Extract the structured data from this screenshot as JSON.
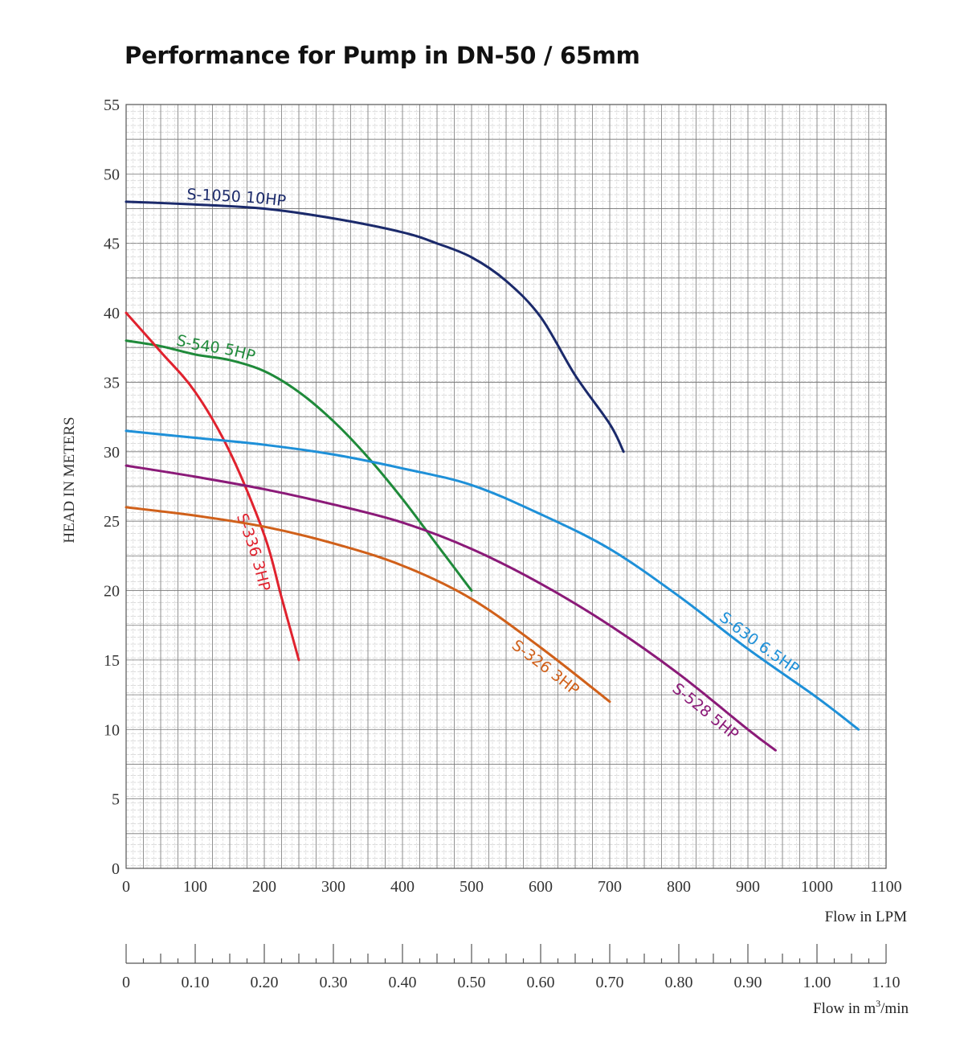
{
  "chart_data": {
    "type": "line",
    "title": "Performance for Pump in DN-50 / 65mm",
    "xlabel": "Flow in LPM",
    "ylabel": "HEAD IN METERS",
    "xlim": [
      0,
      1100
    ],
    "ylim": [
      0,
      55
    ],
    "x_ticks": [
      "0",
      "100",
      "200",
      "300",
      "400",
      "500",
      "600",
      "700",
      "800",
      "900",
      "1000",
      "1100"
    ],
    "y_ticks": [
      "0",
      "5",
      "10",
      "15",
      "20",
      "25",
      "30",
      "35",
      "40",
      "45",
      "50",
      "55"
    ],
    "grid": true,
    "secondary_axis": {
      "label_prefix": "Flow in m",
      "label_superscript": "3",
      "label_suffix": "/min",
      "range": [
        0,
        1.1
      ],
      "ticks": [
        "0",
        "0.10",
        "0.20",
        "0.30",
        "0.40",
        "0.50",
        "0.60",
        "0.70",
        "0.80",
        "0.90",
        "1.00",
        "1.10"
      ]
    },
    "series": [
      {
        "name": "S-1050 10HP",
        "color": "#1b2a6b",
        "x": [
          0,
          100,
          200,
          300,
          400,
          450,
          500,
          550,
          600,
          650,
          700,
          720
        ],
        "y": [
          48,
          47.8,
          47.5,
          46.8,
          45.8,
          45,
          44,
          42.3,
          39.7,
          35.5,
          32,
          30
        ]
      },
      {
        "name": "S-540 5HP",
        "color": "#1f8a3a",
        "x": [
          0,
          50,
          100,
          150,
          200,
          250,
          300,
          350,
          400,
          450,
          500
        ],
        "y": [
          38,
          37.6,
          37,
          36.6,
          35.8,
          34.3,
          32.2,
          29.6,
          26.6,
          23.3,
          20
        ]
      },
      {
        "name": "S-336 3HP",
        "color": "#e0222e",
        "x": [
          0,
          50,
          100,
          150,
          200,
          225,
          250
        ],
        "y": [
          40,
          37.2,
          34.3,
          30,
          24,
          19.5,
          15
        ]
      },
      {
        "name": "S-630 6.5HP",
        "color": "#1e90d8",
        "x": [
          0,
          100,
          200,
          300,
          400,
          500,
          600,
          700,
          800,
          900,
          1000,
          1060
        ],
        "y": [
          31.5,
          31,
          30.5,
          29.8,
          28.8,
          27.6,
          25.5,
          23,
          19.6,
          15.8,
          12.3,
          10
        ]
      },
      {
        "name": "S-528 5HP",
        "color": "#8b1a78",
        "x": [
          0,
          100,
          200,
          300,
          400,
          500,
          600,
          700,
          800,
          900,
          940
        ],
        "y": [
          29,
          28.2,
          27.3,
          26.2,
          24.9,
          23,
          20.5,
          17.5,
          14,
          10,
          8.5
        ]
      },
      {
        "name": "S-326 3HP",
        "color": "#d0601a",
        "x": [
          0,
          100,
          200,
          300,
          400,
          500,
          600,
          700
        ],
        "y": [
          26,
          25.4,
          24.6,
          23.4,
          21.8,
          19.4,
          15.9,
          12
        ]
      }
    ]
  }
}
